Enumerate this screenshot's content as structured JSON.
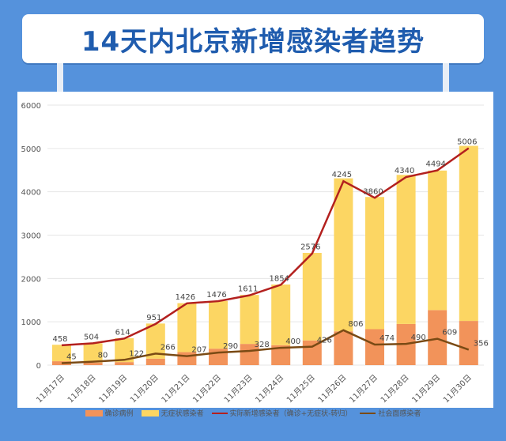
{
  "title": "14天内北京新增感染者趋势",
  "chart_data": {
    "type": "bar+line",
    "categories": [
      "11月17日",
      "11月18日",
      "11月19日",
      "11月20日",
      "11月21日",
      "11月22日",
      "11月23日",
      "11月24日",
      "11月25日",
      "11月26日",
      "11月27日",
      "11月28日",
      "11月29日",
      "11月30日"
    ],
    "ylim": [
      0,
      6000
    ],
    "yticks": [
      0,
      1000,
      2000,
      3000,
      4000,
      5000,
      6000
    ],
    "grid": true,
    "legend_placement": "bottom",
    "series": [
      {
        "name": "确诊病例",
        "kind": "bar-stacked",
        "color": "#f2935a",
        "values": [
          90,
          60,
          70,
          150,
          300,
          380,
          490,
          460,
          570,
          780,
          830,
          950,
          1270,
          1020
        ]
      },
      {
        "name": "无症状感染者",
        "kind": "bar-stacked",
        "color": "#fcd663",
        "values": [
          380,
          444,
          550,
          810,
          1130,
          1100,
          1130,
          1400,
          2020,
          3530,
          3050,
          3440,
          3220,
          4040
        ]
      },
      {
        "name": "实际新增感染者（确诊+无症状-转归）",
        "kind": "line",
        "color": "#b3201e",
        "values": [
          458,
          504,
          614,
          951,
          1426,
          1476,
          1611,
          1854,
          2576,
          4245,
          3860,
          4340,
          4494,
          5006
        ]
      },
      {
        "name": "社会面感染者",
        "kind": "line",
        "color": "#7a4a14",
        "values": [
          45,
          80,
          122,
          266,
          207,
          290,
          328,
          400,
          426,
          806,
          474,
          490,
          609,
          356
        ]
      }
    ]
  }
}
